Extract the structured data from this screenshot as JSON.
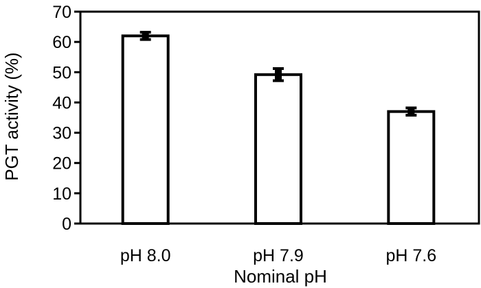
{
  "chart_data": {
    "type": "bar",
    "title": "",
    "xlabel": "Nominal pH",
    "ylabel": "PGT activity (%)",
    "categories": [
      "pH 8.0",
      "pH 7.9",
      "pH 7.6"
    ],
    "values": [
      62,
      49.2,
      37
    ],
    "errors": [
      1.2,
      2.0,
      1.2
    ],
    "ylim": [
      0,
      70
    ],
    "yticks": [
      0,
      10,
      20,
      30,
      40,
      50,
      60,
      70
    ],
    "ytick_labels": [
      "0",
      "10",
      "20",
      "30",
      "40",
      "50",
      "60",
      "70"
    ],
    "grid": false,
    "bar_fill": "#ffffff",
    "bar_stroke": "#000000"
  }
}
